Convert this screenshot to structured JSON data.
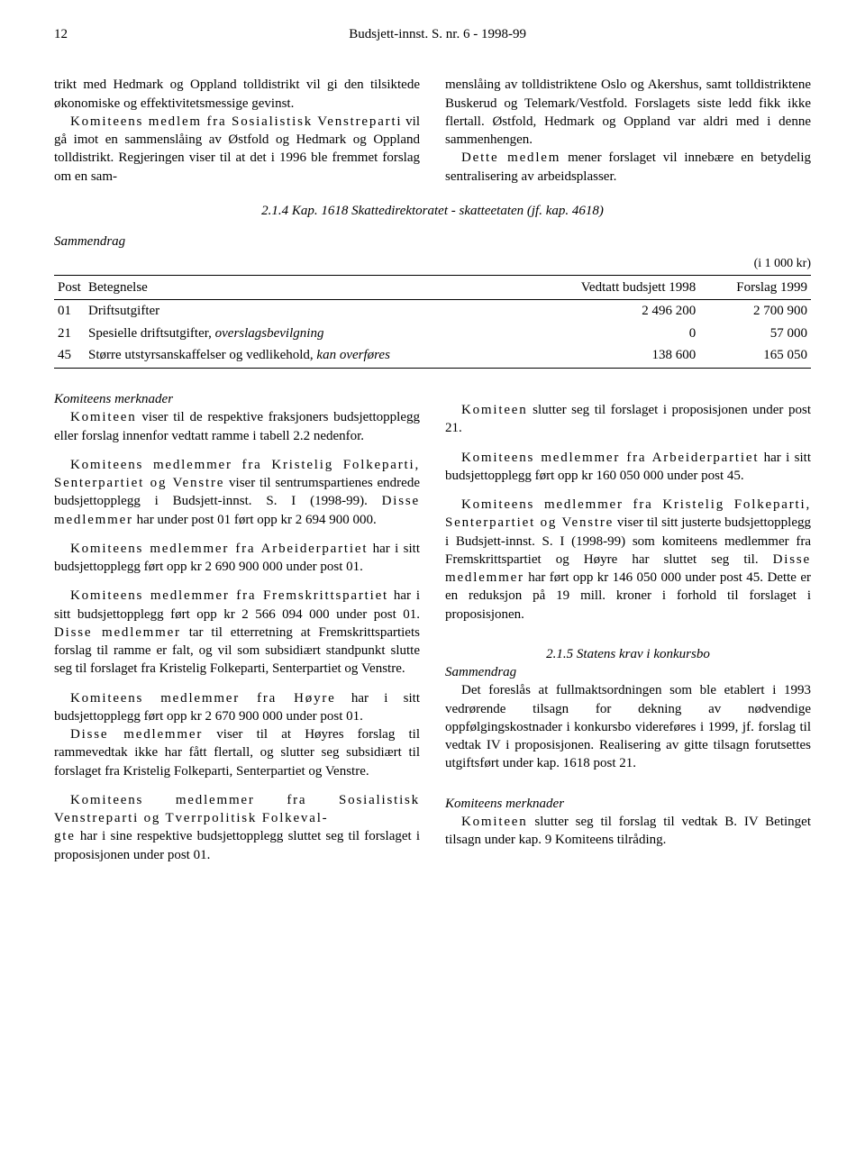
{
  "header": {
    "page_number": "12",
    "doc_title": "Budsjett-innst. S. nr. 6 - 1998-99"
  },
  "top": {
    "left_p1": "trikt med Hedmark og Oppland tolldistrikt vil gi den tilsiktede økonomiske og effektivitetsmessige gevinst.",
    "left_p2a": "Komiteens medlem fra Sosialistisk Venstreparti",
    "left_p2b": " vil gå imot en sammenslåing av Østfold og Hedmark og Oppland tolldistrikt. Regjeringen viser til at det i 1996 ble fremmet forslag om en sam-",
    "right_p1": "menslåing av tolldistriktene Oslo og Akershus, samt tolldistriktene Buskerud og Telemark/Vestfold. Forslagets siste ledd fikk ikke flertall. Østfold, Hedmark og Oppland var aldri med i denne sammenhengen.",
    "right_p2a": "Dette medlem",
    "right_p2b": " mener forslaget vil innebære en betydelig sentralisering av arbeidsplasser."
  },
  "section": {
    "heading": "2.1.4 Kap. 1618 Skattedirektoratet - skatteetaten (jf. kap. 4618)",
    "sammendrag_label": "Sammendrag"
  },
  "table": {
    "unit": "(i 1 000 kr)",
    "columns": [
      "Post",
      "Betegnelse",
      "Vedtatt budsjett 1998",
      "Forslag 1999"
    ],
    "rows": [
      [
        "01",
        "Driftsutgifter",
        "2 496 200",
        "2 700 900"
      ],
      [
        "21",
        "Spesielle driftsutgifter, overslagsbevilgning",
        "0",
        "57 000"
      ],
      [
        "45",
        "Større utstyrsanskaffelser og vedlikehold, kan overføres",
        "138 600",
        "165 050"
      ]
    ],
    "italic_parts": [
      "overslagsbevilgning",
      "kan overføres"
    ]
  },
  "bottom": {
    "l_h1": "Komiteens merknader",
    "l_p1a": "Komiteen",
    "l_p1b": " viser til de respektive fraksjoners budsjettopplegg eller forslag innenfor vedtatt ramme i tabell 2.2 nedenfor.",
    "l_p2a": "Komiteens medlemmer fra Kristelig Folkeparti, Senterpartiet og Venstre",
    "l_p2b": " viser til sentrumspartienes endrede budsjettopplegg i Budsjett-innst. S. I (1998-99). ",
    "l_p2c": "Disse medlemmer",
    "l_p2d": " har under post 01 ført opp kr 2 694 900 000.",
    "l_p3a": "Komiteens medlemmer fra Arbeiderpartiet",
    "l_p3b": " har i sitt budsjettopplegg ført opp kr 2 690 900 000 under post 01.",
    "l_p4a": "Komiteens medlemmer fra Fremskrittspartiet",
    "l_p4b": " har i sitt budsjettopplegg ført opp kr 2 566 094 000 under post 01. ",
    "l_p4c": "Disse medlemmer",
    "l_p4d": " tar til etterretning at Fremskrittspartiets forslag til ramme er falt, og vil som subsidiært standpunkt slutte seg til forslaget fra Kristelig Folkeparti, Senterpartiet og Venstre.",
    "l_p5a": "Komiteens medlemmer fra Høyre",
    "l_p5b": " har i sitt budsjettopplegg ført opp kr 2 670 900 000 under post 01.",
    "l_p6a": "Disse medlemmer",
    "l_p6b": " viser til at Høyres forslag til rammevedtak ikke har fått flertall, og slutter seg subsidiært til forslaget fra Kristelig Folkeparti, Senterpartiet og Venstre.",
    "l_p7a": "Komiteens medlemmer fra Sosialistisk Venstreparti og Tverrpolitisk Folkeval-",
    "r_p1a": "gte",
    "r_p1b": " har i sine respektive budsjettopplegg sluttet seg til forslaget i proposisjonen under post 01.",
    "r_p2a": "Komiteen",
    "r_p2b": " slutter seg til forslaget i proposisjonen under post 21.",
    "r_p3a": "Komiteens medlemmer fra Arbeiderpartiet",
    "r_p3b": " har i sitt budsjettopplegg ført opp kr 160 050 000 under post 45.",
    "r_p4a": "Komiteens medlemmer fra Kristelig Folkeparti, Senterpartiet og Venstre",
    "r_p4b": " viser til sitt justerte budsjettopplegg i Budsjett-innst. S. I (1998-99) som komiteens medlemmer fra Fremskrittspartiet og Høyre har sluttet seg til. ",
    "r_p4c": "Disse medlemmer",
    "r_p4d": " har ført opp kr 146 050 000 under post 45. Dette er en reduksjon på 19 mill. kroner i forhold til forslaget i proposisjonen.",
    "r_h2": "2.1.5 Statens krav i konkursbo",
    "r_s2_label": "Sammendrag",
    "r_p5": "Det foreslås at fullmaktsordningen som ble etablert i 1993 vedrørende tilsagn for dekning av nødvendige oppfølgingskostnader i konkursbo videreføres i 1999, jf. forslag til vedtak IV i proposisjonen. Realisering av gitte tilsagn forutsettes utgiftsført under kap. 1618 post 21.",
    "r_h3": "Komiteens merknader",
    "r_p6a": "Komiteen",
    "r_p6b": " slutter seg til forslag til vedtak B. IV Betinget tilsagn under kap. 9 Komiteens tilråding."
  }
}
